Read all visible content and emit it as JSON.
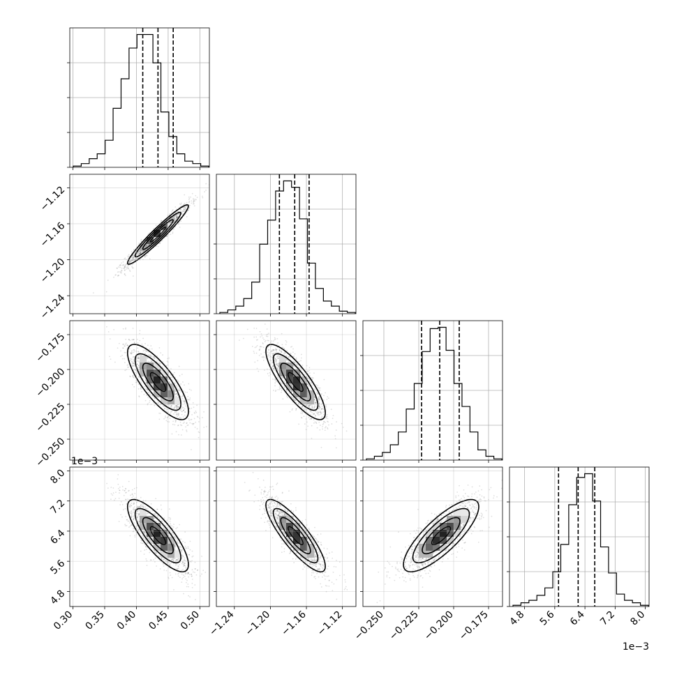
{
  "chart_data": {
    "type": "corner",
    "parameters": [
      {
        "range": [
          0.295,
          0.515
        ],
        "ticks": [
          0.3,
          0.35,
          0.4,
          0.45,
          0.5
        ],
        "tick_labels": [
          "0.30",
          "0.35",
          "0.40",
          "0.45",
          "0.50"
        ],
        "offset_label": "",
        "quantiles": [
          0.41,
          0.434,
          0.458
        ],
        "peak": 0.434
      },
      {
        "range": [
          -1.26,
          -1.105
        ],
        "ticks": [
          -1.24,
          -1.2,
          -1.16,
          -1.12
        ],
        "tick_labels": [
          "−1.24",
          "−1.20",
          "−1.16",
          "−1.12"
        ],
        "offset_label": "",
        "quantiles": [
          -1.19,
          -1.173,
          -1.157
        ],
        "peak": -1.172
      },
      {
        "range": [
          -0.265,
          -0.165
        ],
        "ticks": [
          -0.25,
          -0.225,
          -0.2,
          -0.175
        ],
        "tick_labels": [
          "−0.250",
          "−0.225",
          "−0.200",
          "−0.175"
        ],
        "offset_label": "",
        "quantiles": [
          -0.223,
          -0.21,
          -0.196
        ],
        "peak": -0.209
      },
      {
        "range": [
          4.4,
          8.1
        ],
        "ticks": [
          4.8,
          5.6,
          6.4,
          7.2,
          8.0
        ],
        "tick_labels": [
          "4.8",
          "5.6",
          "6.4",
          "7.2",
          "8.0"
        ],
        "offset_label": "1e−3",
        "quantiles": [
          5.7,
          6.22,
          6.66
        ],
        "peak": 6.28
      }
    ],
    "histograms": [
      [
        1,
        3,
        7,
        11,
        22,
        48,
        72,
        97,
        108,
        108,
        85,
        45,
        25,
        11,
        5,
        3,
        1
      ],
      [
        1,
        3,
        6,
        12,
        25,
        55,
        74,
        97,
        105,
        100,
        75,
        40,
        20,
        10,
        6,
        2,
        1
      ],
      [
        1,
        3,
        6,
        12,
        22,
        40,
        60,
        85,
        103,
        104,
        86,
        60,
        42,
        22,
        8,
        3,
        1
      ],
      [
        1,
        3,
        5,
        9,
        15,
        28,
        50,
        82,
        104,
        107,
        85,
        48,
        27,
        10,
        5,
        3,
        1
      ]
    ],
    "correlations": [
      {
        "row": 1,
        "col": 0,
        "rho": 0.96
      },
      {
        "row": 2,
        "col": 0,
        "rho": -0.78
      },
      {
        "row": 2,
        "col": 1,
        "rho": -0.82
      },
      {
        "row": 3,
        "col": 0,
        "rho": -0.8
      },
      {
        "row": 3,
        "col": 1,
        "rho": -0.85
      },
      {
        "row": 3,
        "col": 2,
        "rho": 0.8
      }
    ],
    "contour_levels": [
      0.5,
      1.0,
      1.5,
      2.0
    ],
    "grid": true
  }
}
